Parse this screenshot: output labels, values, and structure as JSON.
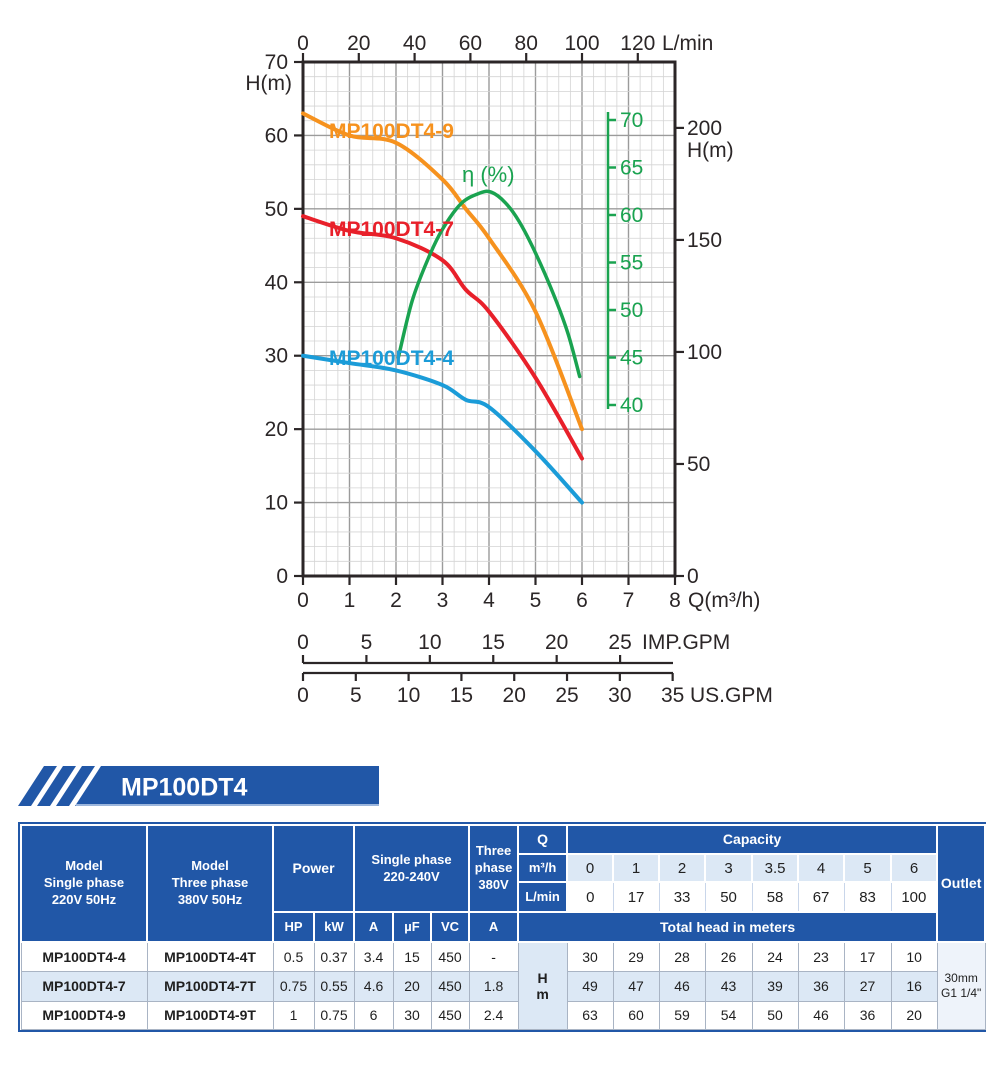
{
  "banner": {
    "title": "MP100DT4"
  },
  "chart": {
    "top_axis": {
      "unit": "L/min",
      "ticks": [
        0,
        20,
        40,
        60,
        80,
        100,
        120
      ]
    },
    "left_axis": {
      "unit": "H(m)",
      "ticks": [
        0,
        10,
        20,
        30,
        40,
        50,
        60,
        70
      ]
    },
    "right_axis": {
      "unit": "H(m)",
      "ticks": [
        0,
        50,
        100,
        150,
        200
      ]
    },
    "bottom_axis": {
      "unit": "Q(m³/h)",
      "ticks": [
        0,
        1,
        2,
        3,
        4,
        5,
        6,
        7,
        8
      ]
    },
    "imp_axis": {
      "unit": "IMP.GPM",
      "ticks": [
        0,
        5,
        10,
        15,
        20,
        25
      ]
    },
    "us_axis": {
      "unit": "US.GPM",
      "ticks": [
        0,
        5,
        10,
        15,
        20,
        25,
        30,
        35
      ]
    },
    "eta_axis": {
      "label": "η (%)",
      "ticks": [
        40,
        45,
        50,
        55,
        60,
        65,
        70
      ]
    }
  },
  "chart_data": {
    "type": "line",
    "title": "Pump performance curves MP100DT4",
    "xlabel": "Q(m³/h)",
    "ylabel": "H(m)",
    "xlim": [
      0,
      8
    ],
    "ylim": [
      0,
      70
    ],
    "grid": "on",
    "x": [
      0,
      1,
      2,
      3,
      3.5,
      4,
      5,
      6
    ],
    "series": [
      {
        "name": "MP100DT4-9",
        "color": "#f6921e",
        "values": [
          63,
          60,
          59,
          54,
          50,
          46,
          36,
          20
        ]
      },
      {
        "name": "MP100DT4-7",
        "color": "#e8202a",
        "values": [
          49,
          47,
          46,
          43,
          39,
          36,
          27,
          16
        ]
      },
      {
        "name": "MP100DT4-4",
        "color": "#1b9cd8",
        "values": [
          30,
          29,
          28,
          26,
          24,
          23,
          17,
          10
        ]
      }
    ],
    "efficiency_series": {
      "name": "η (%)",
      "color": "#1aa350",
      "axis_min": 40,
      "axis_max": 70,
      "points": [
        [
          2.05,
          45
        ],
        [
          2.35,
          51
        ],
        [
          2.7,
          55.5
        ],
        [
          3.0,
          58.5
        ],
        [
          3.4,
          61.2
        ],
        [
          3.8,
          62.3
        ],
        [
          4.05,
          62.4
        ],
        [
          4.35,
          61.3
        ],
        [
          4.65,
          59.3
        ],
        [
          5.0,
          56.0
        ],
        [
          5.4,
          51.5
        ],
        [
          5.7,
          47.5
        ],
        [
          5.95,
          43
        ]
      ]
    },
    "secondary_x_axes": [
      {
        "unit": "IMP.GPM",
        "units_per_m3h": 3.6662
      },
      {
        "unit": "US.GPM",
        "units_per_m3h": 4.4029
      }
    ]
  },
  "table": {
    "header": {
      "model_single": "Model\nSingle phase\n220V 50Hz",
      "model_three": "Model\nThree phase\n380V 50Hz",
      "power": "Power",
      "single_phase": "Single phase\n220-240V",
      "three_phase": "Three\nphase\n380V",
      "q": "Q",
      "m3h": "m³/h",
      "lmin": "L/min",
      "capacity": "Capacity",
      "total_head": "Total head in meters",
      "outlet": "Outlet",
      "hm": "H\nm",
      "units": [
        "HP",
        "kW",
        "A",
        "µF",
        "VC",
        "A"
      ],
      "capacity_m3h": [
        "0",
        "1",
        "2",
        "3",
        "3.5",
        "4",
        "5",
        "6"
      ],
      "capacity_lmin": [
        "0",
        "17",
        "33",
        "50",
        "58",
        "67",
        "83",
        "100"
      ]
    },
    "outlet_value": "30mm\nG1 1/4\"",
    "rows": [
      {
        "model_single": "MP100DT4-4",
        "model_three": "MP100DT4-4T",
        "hp": "0.5",
        "kw": "0.37",
        "a": "3.4",
        "uf": "15",
        "vc": "450",
        "a3": "-",
        "heads": [
          "30",
          "29",
          "28",
          "26",
          "24",
          "23",
          "17",
          "10"
        ]
      },
      {
        "model_single": "MP100DT4-7",
        "model_three": "MP100DT4-7T",
        "hp": "0.75",
        "kw": "0.55",
        "a": "4.6",
        "uf": "20",
        "vc": "450",
        "a3": "1.8",
        "heads": [
          "49",
          "47",
          "46",
          "43",
          "39",
          "36",
          "27",
          "16"
        ]
      },
      {
        "model_single": "MP100DT4-9",
        "model_three": "MP100DT4-9T",
        "hp": "1",
        "kw": "0.75",
        "a": "6",
        "uf": "30",
        "vc": "450",
        "a3": "2.4",
        "heads": [
          "63",
          "60",
          "59",
          "54",
          "50",
          "46",
          "36",
          "20"
        ]
      }
    ]
  }
}
